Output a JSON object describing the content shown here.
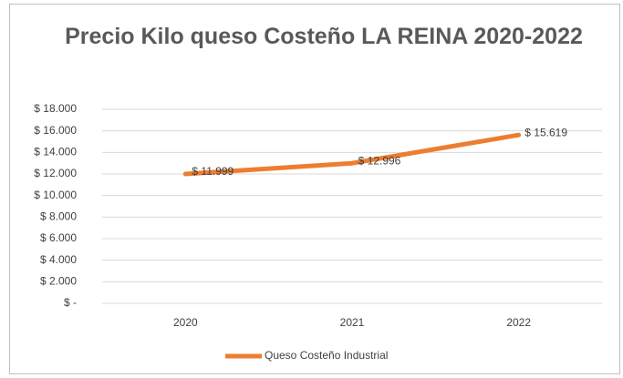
{
  "chart_data": {
    "type": "line",
    "title": "Precio Kilo queso Costeño LA REINA 2020-2022",
    "categories": [
      "2020",
      "2021",
      "2022"
    ],
    "series": [
      {
        "name": "Queso Costeño Industrial",
        "color": "#ed7d31",
        "values": [
          11999,
          12996,
          15619
        ],
        "value_labels": [
          "$ 11.999",
          "$ 12.996",
          "$ 15.619"
        ]
      }
    ],
    "ylim": [
      0,
      18000
    ],
    "yticks": [
      {
        "value": 0,
        "label": "$ -"
      },
      {
        "value": 2000,
        "label": "$ 2.000"
      },
      {
        "value": 4000,
        "label": "$ 4.000"
      },
      {
        "value": 6000,
        "label": "$ 6.000"
      },
      {
        "value": 8000,
        "label": "$ 8.000"
      },
      {
        "value": 10000,
        "label": "$ 10.000"
      },
      {
        "value": 12000,
        "label": "$ 12.000"
      },
      {
        "value": 14000,
        "label": "$ 14.000"
      },
      {
        "value": 16000,
        "label": "$ 16.000"
      },
      {
        "value": 18000,
        "label": "$ 18.000"
      }
    ],
    "grid": true,
    "legend": "bottom"
  }
}
